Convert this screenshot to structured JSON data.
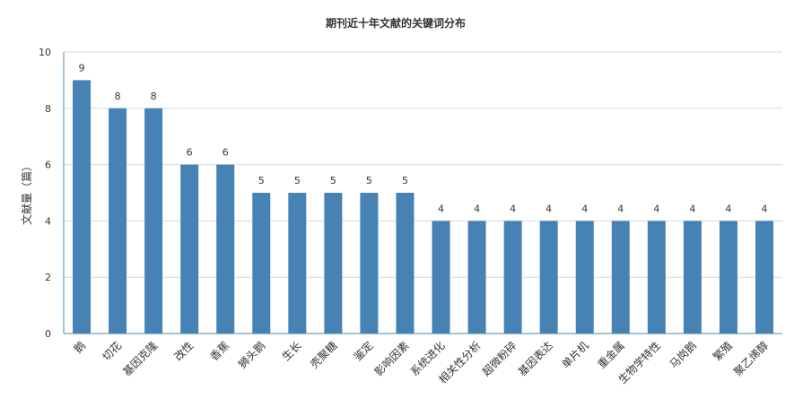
{
  "chart_data": {
    "type": "bar",
    "title": "期刊近十年文献的关键词分布",
    "ylabel": "文献量（篇）",
    "xlabel": "",
    "ylim": [
      0,
      10
    ],
    "yticks": [
      0,
      2,
      4,
      6,
      8,
      10
    ],
    "grid": true,
    "bar_color": "#4682b4",
    "categories": [
      "鹅",
      "切花",
      "基因克隆",
      "改性",
      "香蕉",
      "狮头鹅",
      "生长",
      "壳聚糖",
      "鉴定",
      "影响因素",
      "系统进化",
      "相关性分析",
      "超微粉碎",
      "基因表达",
      "单片机",
      "重金属",
      "生物学特性",
      "马岗鹅",
      "繁殖",
      "聚乙烯醇"
    ],
    "values": [
      9,
      8,
      8,
      6,
      6,
      5,
      5,
      5,
      5,
      5,
      4,
      4,
      4,
      4,
      4,
      4,
      4,
      4,
      4,
      4
    ]
  }
}
